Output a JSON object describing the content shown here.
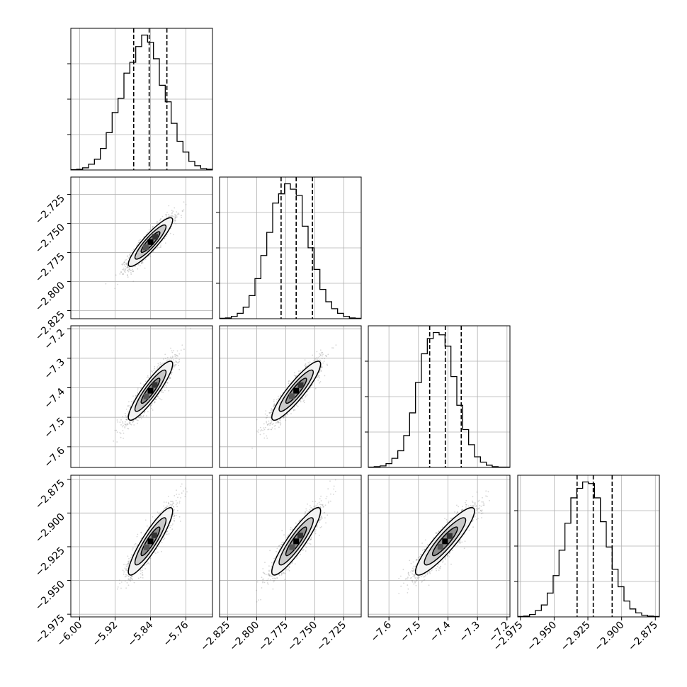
{
  "chart_data": {
    "type": "corner",
    "title": "",
    "grid": true,
    "parameters": [
      {
        "label": "",
        "range": [
          -6.02,
          -5.7
        ],
        "ticks": [
          -6.0,
          -5.92,
          -5.84,
          -5.76
        ],
        "tick_labels": [
          "−6.00",
          "−5.92",
          "−5.84",
          "−5.76"
        ],
        "mean": -5.84,
        "sd": 0.025,
        "quantiles": [
          -5.878,
          -5.843,
          -5.803
        ]
      },
      {
        "label": "",
        "range": [
          -2.832,
          -2.71
        ],
        "ticks": [
          -2.825,
          -2.8,
          -2.775,
          -2.75,
          -2.725
        ],
        "tick_labels": [
          "−2.825",
          "−2.800",
          "−2.775",
          "−2.750",
          "−2.725"
        ],
        "mean": -2.766,
        "sd": 0.0105,
        "quantiles": [
          -2.779,
          -2.766,
          -2.752
        ]
      },
      {
        "label": "",
        "range": [
          -7.67,
          -7.19
        ],
        "ticks": [
          -7.6,
          -7.5,
          -7.4,
          -7.3,
          -7.2
        ],
        "tick_labels": [
          "−7.6",
          "−7.5",
          "−7.4",
          "−7.3",
          "−7.2"
        ],
        "mean": -7.41,
        "sd": 0.05,
        "quantiles": [
          -7.462,
          -7.409,
          -7.355
        ]
      },
      {
        "label": "",
        "range": [
          -2.977,
          -2.872
        ],
        "ticks": [
          -2.975,
          -2.95,
          -2.925,
          -2.9,
          -2.875
        ],
        "tick_labels": [
          "−2.975",
          "−2.950",
          "−2.925",
          "−2.900",
          "−2.875"
        ],
        "mean": -2.921,
        "sd": 0.0125,
        "quantiles": [
          -2.933,
          -2.921,
          -2.907
        ]
      }
    ],
    "correlation": 0.9,
    "histograms": [
      [
        0.5,
        1,
        3,
        8,
        15,
        30,
        52,
        80,
        100,
        135,
        150,
        172,
        188,
        178,
        155,
        118,
        95,
        65,
        40,
        25,
        12,
        6,
        2,
        1
      ],
      [
        0.5,
        1,
        3,
        7,
        15,
        30,
        52,
        82,
        112,
        150,
        162,
        175,
        168,
        160,
        120,
        92,
        64,
        38,
        22,
        13,
        7,
        3,
        1,
        0.5
      ],
      [
        0.5,
        1,
        2,
        5,
        12,
        22,
        42,
        72,
        112,
        150,
        170,
        178,
        175,
        160,
        120,
        82,
        50,
        30,
        14,
        7,
        3,
        1,
        0.5,
        0.5
      ],
      [
        0.5,
        1,
        3,
        8,
        15,
        30,
        52,
        84,
        118,
        150,
        162,
        170,
        168,
        150,
        120,
        88,
        60,
        38,
        20,
        10,
        5,
        2,
        1,
        0.5
      ]
    ]
  }
}
